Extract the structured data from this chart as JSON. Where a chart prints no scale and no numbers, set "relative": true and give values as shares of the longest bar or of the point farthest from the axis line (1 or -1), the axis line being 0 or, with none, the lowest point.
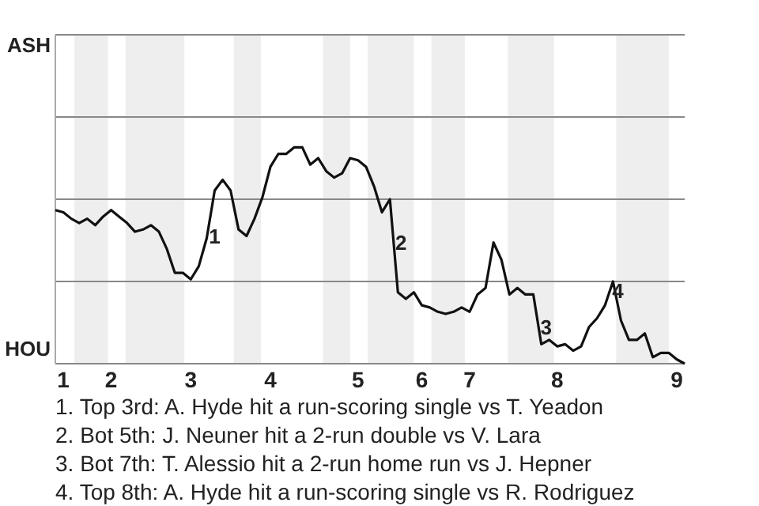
{
  "chart_data": {
    "type": "line",
    "relative": true,
    "categories": [
      null,
      "1",
      null,
      null,
      null,
      null,
      null,
      "2",
      null,
      null,
      null,
      null,
      null,
      null,
      null,
      null,
      null,
      "3",
      null,
      null,
      null,
      null,
      null,
      null,
      null,
      null,
      null,
      "4",
      null,
      null,
      null,
      null,
      null,
      null,
      null,
      null,
      null,
      null,
      "5",
      null,
      null,
      null,
      null,
      null,
      null,
      null,
      "6",
      null,
      null,
      null,
      null,
      null,
      "7",
      null,
      null,
      null,
      null,
      null,
      null,
      null,
      null,
      null,
      null,
      "8",
      null,
      null,
      null,
      null,
      null,
      null,
      null,
      null,
      null,
      null,
      null,
      null,
      null,
      null,
      "9",
      null
    ],
    "series": [
      {
        "color": "#111111",
        "values": [
          0.71,
          0.7,
          0.67,
          0.65,
          0.67,
          0.64,
          0.68,
          0.71,
          0.68,
          0.65,
          0.61,
          0.62,
          0.64,
          0.61,
          0.53,
          0.42,
          0.42,
          0.39,
          0.45,
          0.58,
          0.8,
          0.85,
          0.8,
          0.62,
          0.59,
          0.67,
          0.77,
          0.91,
          0.97,
          0.97,
          1,
          1,
          0.92,
          0.95,
          0.89,
          0.86,
          0.88,
          0.95,
          0.94,
          0.91,
          0.82,
          0.7,
          0.76,
          0.33,
          0.3,
          0.33,
          0.27,
          0.26,
          0.24,
          0.23,
          0.24,
          0.26,
          0.24,
          0.32,
          0.35,
          0.56,
          0.48,
          0.32,
          0.35,
          0.32,
          0.32,
          0.09,
          0.11,
          0.08,
          0.09,
          0.06,
          0.08,
          0.17,
          0.21,
          0.27,
          0.38,
          0.2,
          0.11,
          0.11,
          0.14,
          0.03,
          0.05,
          0.05,
          0.02,
          0
        ]
      }
    ],
    "marker": "none",
    "line_style": "solid",
    "ref_lines": [
      {
        "axis": "y",
        "value": 0,
        "label": "HOU",
        "color": "#888888"
      },
      {
        "axis": "y",
        "value": 0.38,
        "color": "#888888"
      },
      {
        "axis": "y",
        "value": 0.76,
        "color": "#888888"
      },
      {
        "axis": "y",
        "value": 1.14,
        "color": "#888888"
      },
      {
        "axis": "y",
        "value": 1.52,
        "label": "ASH",
        "color": "#888888"
      }
    ],
    "annotations": [
      {
        "text": "1",
        "y": 0.58
      },
      {
        "text": "2",
        "y": 0.55
      },
      {
        "text": "3",
        "y": 0.16
      },
      {
        "text": "4",
        "y": 0.33
      },
      "1. Top 3rd: A. Hyde hit a run-scoring single vs T. Yeadon",
      "2. Bot 5th: J. Neuner hit a 2-run double vs V. Lara",
      "3. Bot 7th: T. Alessio hit a 2-run home run vs J. Hepner",
      "4. Top 8th: A. Hyde hit a run-scoring single vs R. Rodriguez"
    ]
  }
}
